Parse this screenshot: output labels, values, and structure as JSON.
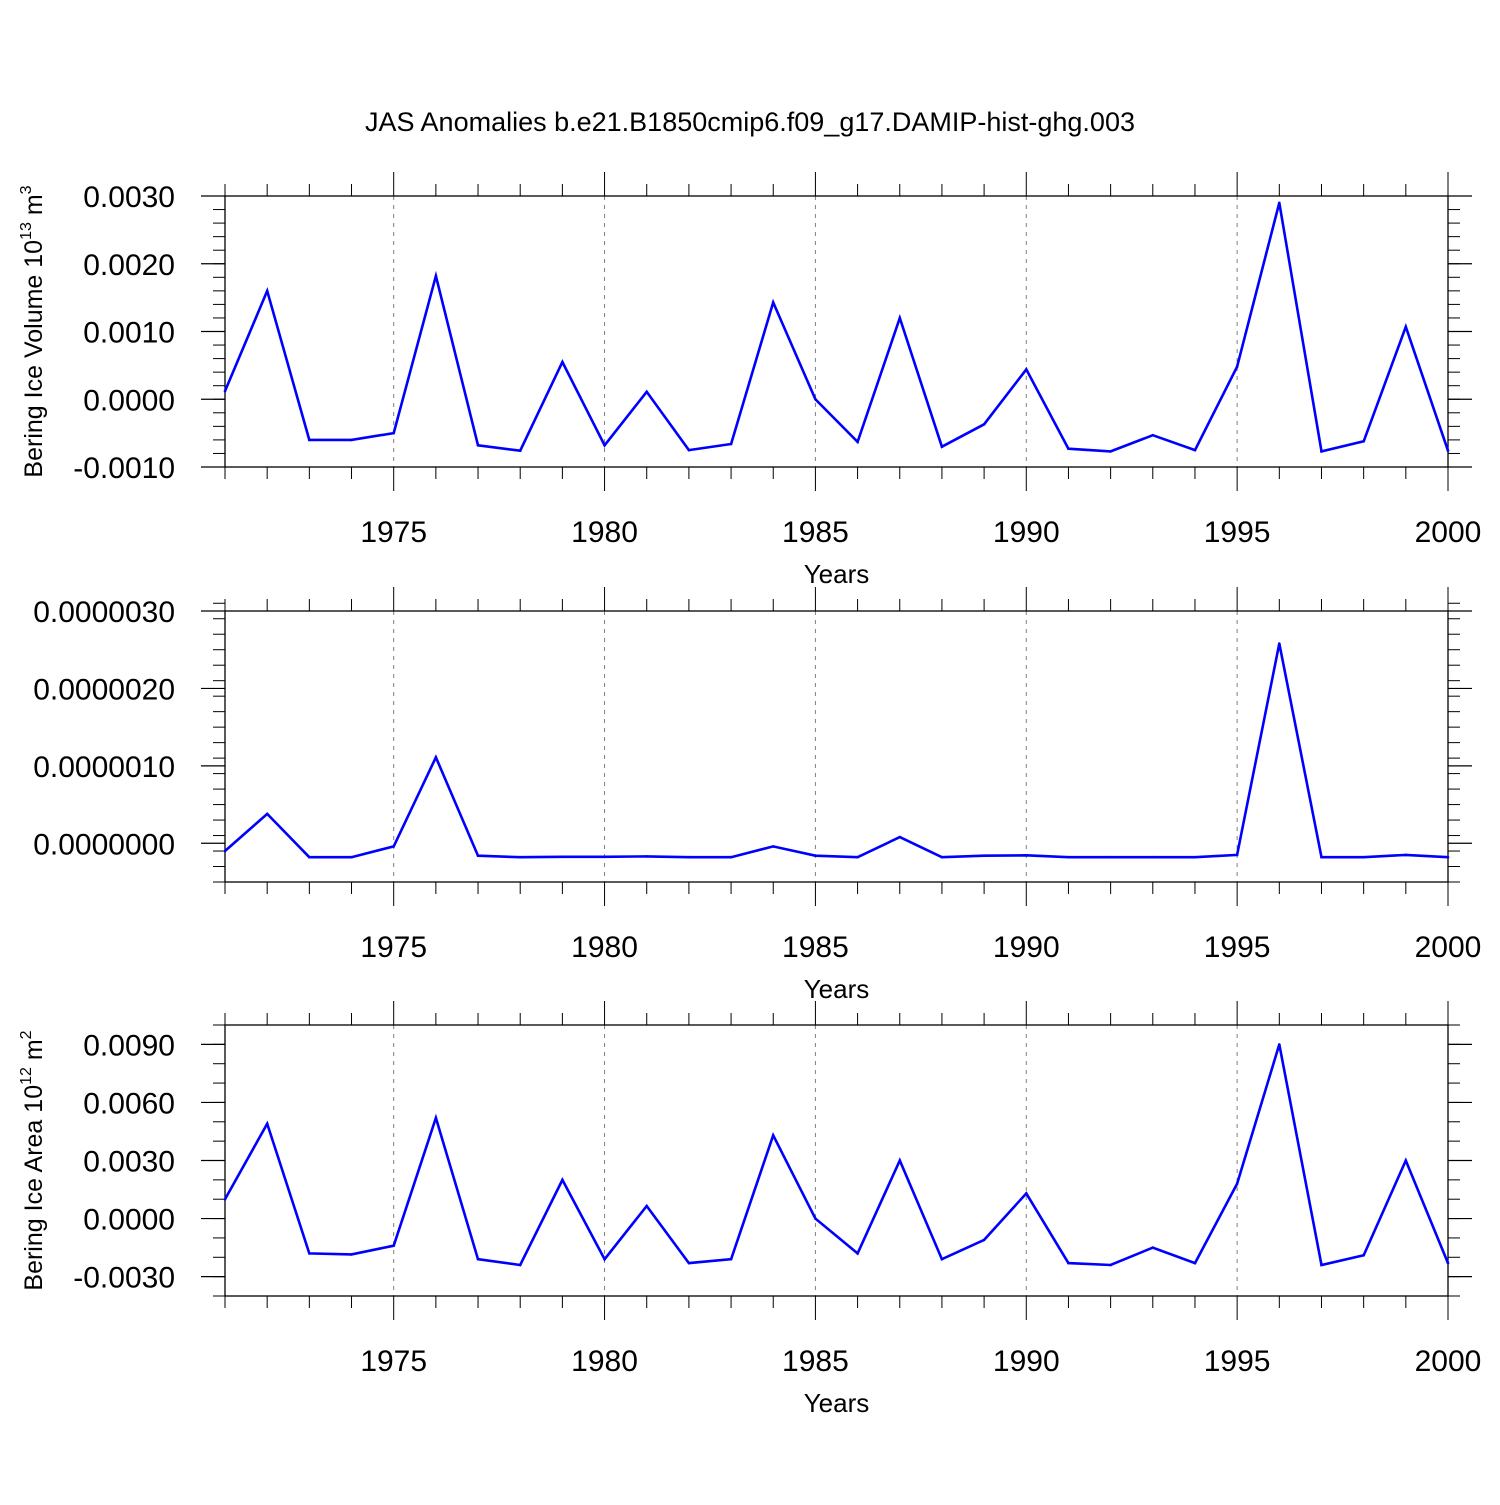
{
  "title": "JAS Anomalies b.e21.B1850cmip6.f09_g17.DAMIP-hist-ghg.003",
  "colors": {
    "line": "#0000ff",
    "axis": "#000000",
    "grid": "#7f7f7f"
  },
  "chart_data": [
    {
      "type": "line",
      "id": "volume",
      "xlabel": "Years",
      "ylabel": {
        "prefix": "Bering Ice Volume 10",
        "exp": "13",
        "unit": " m",
        "unit_exp": "3"
      },
      "xlim": [
        1971,
        2000
      ],
      "ylim": [
        -0.001,
        0.003
      ],
      "xticks": [
        1975,
        1980,
        1985,
        1990,
        1995,
        2000
      ],
      "xtick_labels": [
        "1975",
        "1980",
        "1985",
        "1990",
        "1995",
        "2000"
      ],
      "yticks": [
        -0.001,
        0,
        0.001,
        0.002,
        0.003
      ],
      "ytick_labels": [
        "-0.0010",
        "0.0000",
        "0.0010",
        "0.0020",
        "0.0030"
      ],
      "y_minor_step": 0.0002,
      "gridlines_x": "dashed vertical at major x ticks",
      "x": [
        1971,
        1972,
        1973,
        1974,
        1975,
        1976,
        1977,
        1978,
        1979,
        1980,
        1981,
        1982,
        1983,
        1984,
        1985,
        1986,
        1987,
        1988,
        1989,
        1990,
        1991,
        1992,
        1993,
        1994,
        1995,
        1996,
        1997,
        1998,
        1999,
        2000
      ],
      "series": [
        {
          "name": "Bering Ice Volume",
          "values": [
            0.00012,
            0.0016,
            -0.0006,
            -0.0006,
            -0.0005,
            0.00182,
            -0.00068,
            -0.00076,
            0.00055,
            -0.00068,
            0.00011,
            -0.00075,
            -0.00066,
            0.00143,
            0.0,
            -0.00063,
            0.0012,
            -0.0007,
            -0.00037,
            0.00044,
            -0.00073,
            -0.00077,
            -0.00053,
            -0.00075,
            0.00048,
            0.0029,
            -0.00077,
            -0.00062,
            0.00107,
            -0.00076
          ]
        }
      ]
    },
    {
      "type": "line",
      "id": "thickness",
      "xlabel": "Years",
      "xlim": [
        1971,
        2000
      ],
      "ylim": [
        -5e-07,
        3e-06
      ],
      "xticks": [
        1975,
        1980,
        1985,
        1990,
        1995,
        2000
      ],
      "xtick_labels": [
        "1975",
        "1980",
        "1985",
        "1990",
        "1995",
        "2000"
      ],
      "yticks": [
        0,
        1e-06,
        2e-06,
        3e-06
      ],
      "ytick_labels": [
        "0.0000000",
        "0.0000010",
        "0.0000020",
        "0.0000030"
      ],
      "y_minor_step": 2e-07,
      "gridlines_x": "dashed vertical at major x ticks",
      "x": [
        1971,
        1972,
        1973,
        1974,
        1975,
        1976,
        1977,
        1978,
        1979,
        1980,
        1981,
        1982,
        1983,
        1984,
        1985,
        1986,
        1987,
        1988,
        1989,
        1990,
        1991,
        1992,
        1993,
        1994,
        1995,
        1996,
        1997,
        1998,
        1999,
        2000
      ],
      "series": [
        {
          "name": "series",
          "values": [
            -1e-07,
            3.8e-07,
            -1.8e-07,
            -1.8e-07,
            -4e-08,
            1.11e-06,
            -1.6e-07,
            -1.8e-07,
            -1.75e-07,
            -1.75e-07,
            -1.7e-07,
            -1.8e-07,
            -1.8e-07,
            -4e-08,
            -1.6e-07,
            -1.8e-07,
            8e-08,
            -1.8e-07,
            -1.6e-07,
            -1.55e-07,
            -1.8e-07,
            -1.8e-07,
            -1.8e-07,
            -1.8e-07,
            -1.5e-07,
            2.58e-06,
            -1.8e-07,
            -1.8e-07,
            -1.5e-07,
            -1.8e-07
          ]
        }
      ]
    },
    {
      "type": "line",
      "id": "area",
      "xlabel": "Years",
      "ylabel": {
        "prefix": "Bering Ice Area 10",
        "exp": "12",
        "unit": " m",
        "unit_exp": "2"
      },
      "xlim": [
        1971,
        2000
      ],
      "ylim": [
        -0.004,
        0.01
      ],
      "xticks": [
        1975,
        1980,
        1985,
        1990,
        1995,
        2000
      ],
      "xtick_labels": [
        "1975",
        "1980",
        "1985",
        "1990",
        "1995",
        "2000"
      ],
      "yticks": [
        -0.003,
        0,
        0.003,
        0.006,
        0.009
      ],
      "ytick_labels": [
        "-0.0030",
        "0.0000",
        "0.0030",
        "0.0060",
        "0.0090"
      ],
      "y_minor_step": 0.001,
      "gridlines_x": "dashed vertical at major x ticks",
      "x": [
        1971,
        1972,
        1973,
        1974,
        1975,
        1976,
        1977,
        1978,
        1979,
        1980,
        1981,
        1982,
        1983,
        1984,
        1985,
        1986,
        1987,
        1988,
        1989,
        1990,
        1991,
        1992,
        1993,
        1994,
        1995,
        1996,
        1997,
        1998,
        1999,
        2000
      ],
      "series": [
        {
          "name": "Bering Ice Area",
          "values": [
            0.001,
            0.0049,
            -0.0018,
            -0.00185,
            -0.0014,
            0.0052,
            -0.0021,
            -0.0024,
            0.002,
            -0.0021,
            0.00065,
            -0.0023,
            -0.0021,
            0.0043,
            0.0,
            -0.0018,
            0.003,
            -0.0021,
            -0.0011,
            0.0013,
            -0.0023,
            -0.0024,
            -0.0015,
            -0.0023,
            0.0018,
            0.009,
            -0.0024,
            -0.0019,
            0.003,
            -0.0023
          ]
        }
      ]
    }
  ]
}
